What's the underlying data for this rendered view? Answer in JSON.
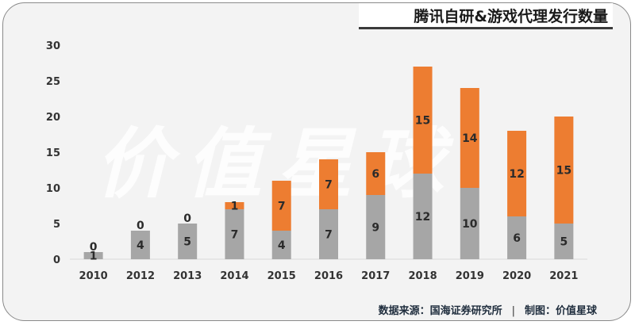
{
  "title": "腾讯自研&游戏代理发行数量",
  "footer": {
    "source": "数据来源：国海证券研究所",
    "separator": "|",
    "credit": "制图：价值星球"
  },
  "watermark": "价值星球",
  "colors": {
    "series_bottom": "#a6a6a6",
    "series_top": "#ed7d31",
    "grid": "#d9d9d9"
  },
  "chart_data": {
    "type": "bar",
    "stacked": true,
    "categories": [
      "2010",
      "2012",
      "2013",
      "2014",
      "2015",
      "2016",
      "2017",
      "2018",
      "2019",
      "2020",
      "2021"
    ],
    "series": [
      {
        "values": [
          1,
          4,
          5,
          7,
          4,
          7,
          9,
          12,
          10,
          6,
          5
        ]
      },
      {
        "values": [
          0,
          0,
          0,
          1,
          7,
          7,
          6,
          15,
          14,
          12,
          15
        ]
      }
    ],
    "ylim": [
      0,
      30
    ],
    "yticks": [
      0,
      5,
      10,
      15,
      20,
      25,
      30
    ],
    "xlabel": "",
    "ylabel": "",
    "grid": false
  }
}
